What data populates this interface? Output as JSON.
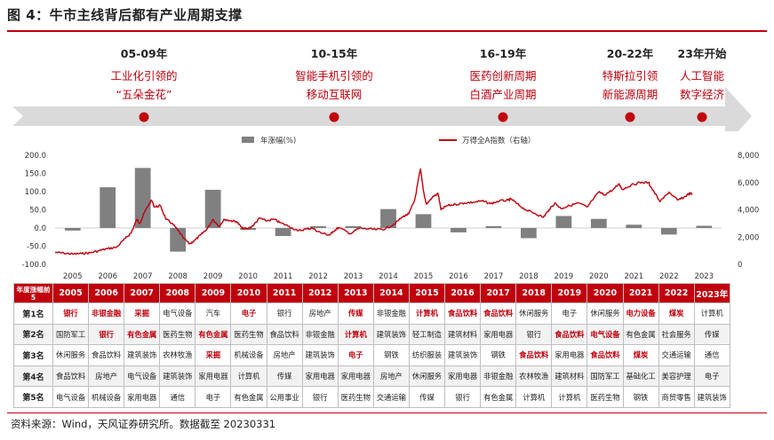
{
  "title": "图 4：牛市主线背后都有产业周期支撑",
  "source": "资料来源：Wind，天风证券研究所。数据截至 20230331",
  "colors": {
    "accent": "#c0000c",
    "bar": "#808080",
    "arrow": "#dadada",
    "dot": "#c0000c"
  },
  "eras": [
    {
      "period": "05-09年",
      "line1": "工业化引领的",
      "line2": "“五朵金花”"
    },
    {
      "period": "10-15年",
      "line1": "智能手机引领的",
      "line2": "移动互联网"
    },
    {
      "period": "16-19年",
      "line1": "医药创新周期",
      "line2": "白酒产业周期"
    },
    {
      "period": "20-22年",
      "line1": "特斯拉引领",
      "line2": "新能源周期"
    },
    {
      "period": "23年开始",
      "line1": "人工智能",
      "line2": "数字经济"
    }
  ],
  "chart_data": {
    "type": "bar+line",
    "legend_position": "top",
    "grid": false,
    "x": [
      "2005",
      "2006",
      "2007",
      "2008",
      "2009",
      "2010",
      "2011",
      "2012",
      "2013",
      "2014",
      "2015",
      "2016",
      "2017",
      "2018",
      "2019",
      "2020",
      "2021",
      "2022",
      "2023"
    ],
    "yticks_left": [
      "200.0",
      "150.0",
      "100.0",
      "50.0",
      "0.0",
      "-50.0",
      "-100.0"
    ],
    "yticks_right": [
      "8,000",
      "6,000",
      "4,000",
      "2,000",
      "0"
    ],
    "ylim_left": [
      -100,
      200
    ],
    "ylim_right": [
      0,
      8000
    ],
    "series": [
      {
        "name": "年涨幅(%)",
        "type": "bar",
        "axis": "left",
        "values": [
          -7,
          112,
          165,
          -65,
          105,
          -5,
          -22,
          5,
          5,
          52,
          38,
          -12,
          5,
          -28,
          33,
          25,
          9,
          -18,
          6
        ]
      },
      {
        "name": "万得全A指数（右轴）",
        "type": "line",
        "axis": "right",
        "points": [
          [
            "2005-01",
            880
          ],
          [
            "2005-04",
            820
          ],
          [
            "2005-07",
            760
          ],
          [
            "2005-10",
            790
          ],
          [
            "2006-01",
            850
          ],
          [
            "2006-04",
            1000
          ],
          [
            "2006-07",
            1150
          ],
          [
            "2006-10",
            1250
          ],
          [
            "2007-01",
            1900
          ],
          [
            "2007-03",
            2300
          ],
          [
            "2007-05",
            3300
          ],
          [
            "2007-06",
            3000
          ],
          [
            "2007-08",
            4000
          ],
          [
            "2007-10",
            4700
          ],
          [
            "2007-11",
            4200
          ],
          [
            "2008-01",
            4300
          ],
          [
            "2008-03",
            3300
          ],
          [
            "2008-05",
            3000
          ],
          [
            "2008-07",
            2500
          ],
          [
            "2008-09",
            1900
          ],
          [
            "2008-11",
            1500
          ],
          [
            "2009-01",
            1800
          ],
          [
            "2009-03",
            2200
          ],
          [
            "2009-05",
            2600
          ],
          [
            "2009-07",
            3300
          ],
          [
            "2009-09",
            2800
          ],
          [
            "2009-11",
            3300
          ],
          [
            "2010-01",
            3200
          ],
          [
            "2010-03",
            3150
          ],
          [
            "2010-05",
            2650
          ],
          [
            "2010-07",
            2600
          ],
          [
            "2010-09",
            2900
          ],
          [
            "2010-11",
            3400
          ],
          [
            "2011-01",
            3200
          ],
          [
            "2011-04",
            3300
          ],
          [
            "2011-06",
            3050
          ],
          [
            "2011-09",
            2800
          ],
          [
            "2011-12",
            2450
          ],
          [
            "2012-03",
            2600
          ],
          [
            "2012-05",
            2650
          ],
          [
            "2012-08",
            2300
          ],
          [
            "2012-11",
            2150
          ],
          [
            "2012-12",
            2400
          ],
          [
            "2013-02",
            2700
          ],
          [
            "2013-06",
            2250
          ],
          [
            "2013-09",
            2650
          ],
          [
            "2013-12",
            2600
          ],
          [
            "2014-03",
            2550
          ],
          [
            "2014-06",
            2600
          ],
          [
            "2014-09",
            2950
          ],
          [
            "2014-12",
            3500
          ],
          [
            "2015-02",
            3700
          ],
          [
            "2015-04",
            4700
          ],
          [
            "2015-06",
            7000
          ],
          [
            "2015-07",
            5400
          ],
          [
            "2015-08",
            4400
          ],
          [
            "2015-10",
            4900
          ],
          [
            "2015-12",
            5200
          ],
          [
            "2016-01",
            4000
          ],
          [
            "2016-03",
            4300
          ],
          [
            "2016-06",
            4400
          ],
          [
            "2016-09",
            4500
          ],
          [
            "2016-12",
            4550
          ],
          [
            "2017-03",
            4650
          ],
          [
            "2017-06",
            4450
          ],
          [
            "2017-09",
            4650
          ],
          [
            "2017-12",
            4700
          ],
          [
            "2018-01",
            4800
          ],
          [
            "2018-03",
            4450
          ],
          [
            "2018-06",
            4000
          ],
          [
            "2018-09",
            3750
          ],
          [
            "2018-12",
            3450
          ],
          [
            "2019-02",
            4000
          ],
          [
            "2019-04",
            4500
          ],
          [
            "2019-06",
            4100
          ],
          [
            "2019-09",
            4300
          ],
          [
            "2019-12",
            4500
          ],
          [
            "2020-03",
            4200
          ],
          [
            "2020-07",
            5300
          ],
          [
            "2020-09",
            5100
          ],
          [
            "2020-12",
            5500
          ],
          [
            "2021-02",
            5900
          ],
          [
            "2021-03",
            5500
          ],
          [
            "2021-06",
            5800
          ],
          [
            "2021-09",
            6000
          ],
          [
            "2021-12",
            6000
          ],
          [
            "2022-01",
            5600
          ],
          [
            "2022-04",
            4600
          ],
          [
            "2022-07",
            5300
          ],
          [
            "2022-10",
            4700
          ],
          [
            "2022-12",
            4900
          ],
          [
            "2023-02",
            5200
          ],
          [
            "2023-03",
            5150
          ]
        ]
      }
    ]
  },
  "table": {
    "corner": "年度涨幅前5",
    "years": [
      "2005",
      "2006",
      "2007",
      "2008",
      "2009",
      "2010",
      "2011",
      "2012",
      "2013",
      "2014",
      "2015",
      "2016",
      "2017",
      "2018",
      "2019",
      "2020",
      "2021",
      "2022",
      "2023年"
    ],
    "rows": [
      {
        "rank": "第1名",
        "cells": [
          {
            "t": "银行",
            "hl": true
          },
          {
            "t": "非银金融",
            "hl": true
          },
          {
            "t": "采掘",
            "hl": true
          },
          {
            "t": "电气设备",
            "hl": false
          },
          {
            "t": "汽车",
            "hl": false
          },
          {
            "t": "电子",
            "hl": true
          },
          {
            "t": "银行",
            "hl": false
          },
          {
            "t": "房地产",
            "hl": false
          },
          {
            "t": "传媒",
            "hl": true
          },
          {
            "t": "非银金融",
            "hl": false
          },
          {
            "t": "计算机",
            "hl": true
          },
          {
            "t": "食品饮料",
            "hl": true
          },
          {
            "t": "食品饮料",
            "hl": true
          },
          {
            "t": "休闲服务",
            "hl": false
          },
          {
            "t": "电子",
            "hl": false
          },
          {
            "t": "休闲服务",
            "hl": false
          },
          {
            "t": "电力设备",
            "hl": true
          },
          {
            "t": "煤炭",
            "hl": true
          },
          {
            "t": "计算机",
            "hl": false
          }
        ]
      },
      {
        "rank": "第2名",
        "cells": [
          {
            "t": "国防军工",
            "hl": false
          },
          {
            "t": "银行",
            "hl": true
          },
          {
            "t": "有色金属",
            "hl": true
          },
          {
            "t": "医药生物",
            "hl": false
          },
          {
            "t": "有色金属",
            "hl": true
          },
          {
            "t": "医药生物",
            "hl": false
          },
          {
            "t": "食品饮料",
            "hl": false
          },
          {
            "t": "非银金融",
            "hl": false
          },
          {
            "t": "计算机",
            "hl": true
          },
          {
            "t": "建筑装饰",
            "hl": false
          },
          {
            "t": "轻工制造",
            "hl": false
          },
          {
            "t": "建筑材料",
            "hl": false
          },
          {
            "t": "家用电器",
            "hl": false
          },
          {
            "t": "银行",
            "hl": false
          },
          {
            "t": "食品饮料",
            "hl": true
          },
          {
            "t": "电气设备",
            "hl": true
          },
          {
            "t": "有色金属",
            "hl": false
          },
          {
            "t": "社会服务",
            "hl": false
          },
          {
            "t": "传媒",
            "hl": false
          }
        ]
      },
      {
        "rank": "第3名",
        "cells": [
          {
            "t": "休闲服务",
            "hl": false
          },
          {
            "t": "食品饮料",
            "hl": false
          },
          {
            "t": "建筑装饰",
            "hl": false
          },
          {
            "t": "农林牧渔",
            "hl": false
          },
          {
            "t": "采掘",
            "hl": true
          },
          {
            "t": "机械设备",
            "hl": false
          },
          {
            "t": "房地产",
            "hl": false
          },
          {
            "t": "建筑装饰",
            "hl": false
          },
          {
            "t": "电子",
            "hl": true
          },
          {
            "t": "钢铁",
            "hl": false
          },
          {
            "t": "纺织服装",
            "hl": false
          },
          {
            "t": "建筑装饰",
            "hl": false
          },
          {
            "t": "钢铁",
            "hl": false
          },
          {
            "t": "食品饮料",
            "hl": true
          },
          {
            "t": "家用电器",
            "hl": false
          },
          {
            "t": "食品饮料",
            "hl": true
          },
          {
            "t": "煤炭",
            "hl": true
          },
          {
            "t": "交通运输",
            "hl": false
          },
          {
            "t": "通信",
            "hl": false
          }
        ]
      },
      {
        "rank": "第4名",
        "cells": [
          {
            "t": "食品饮料",
            "hl": false
          },
          {
            "t": "房地产",
            "hl": false
          },
          {
            "t": "电气设备",
            "hl": false
          },
          {
            "t": "建筑装饰",
            "hl": false
          },
          {
            "t": "家用电器",
            "hl": false
          },
          {
            "t": "计算机",
            "hl": false
          },
          {
            "t": "传媒",
            "hl": false
          },
          {
            "t": "家用电器",
            "hl": false
          },
          {
            "t": "家用电器",
            "hl": false
          },
          {
            "t": "房地产",
            "hl": false
          },
          {
            "t": "休闲服务",
            "hl": false
          },
          {
            "t": "家用电器",
            "hl": false
          },
          {
            "t": "非银金融",
            "hl": false
          },
          {
            "t": "农林牧渔",
            "hl": false
          },
          {
            "t": "建筑材料",
            "hl": false
          },
          {
            "t": "国防军工",
            "hl": false
          },
          {
            "t": "基础化工",
            "hl": false
          },
          {
            "t": "美容护理",
            "hl": false
          },
          {
            "t": "电子",
            "hl": false
          }
        ]
      },
      {
        "rank": "第5名",
        "cells": [
          {
            "t": "电气设备",
            "hl": false
          },
          {
            "t": "机械设备",
            "hl": false
          },
          {
            "t": "家用电器",
            "hl": false
          },
          {
            "t": "通信",
            "hl": false
          },
          {
            "t": "电子",
            "hl": false
          },
          {
            "t": "有色金属",
            "hl": false
          },
          {
            "t": "公用事业",
            "hl": false
          },
          {
            "t": "银行",
            "hl": false
          },
          {
            "t": "医药生物",
            "hl": false
          },
          {
            "t": "交通运输",
            "hl": false
          },
          {
            "t": "传媒",
            "hl": false
          },
          {
            "t": "银行",
            "hl": false
          },
          {
            "t": "有色金属",
            "hl": false
          },
          {
            "t": "计算机",
            "hl": false
          },
          {
            "t": "计算机",
            "hl": false
          },
          {
            "t": "医药生物",
            "hl": false
          },
          {
            "t": "钢铁",
            "hl": false
          },
          {
            "t": "商贸零售",
            "hl": false
          },
          {
            "t": "建筑装饰",
            "hl": false
          }
        ]
      }
    ]
  }
}
